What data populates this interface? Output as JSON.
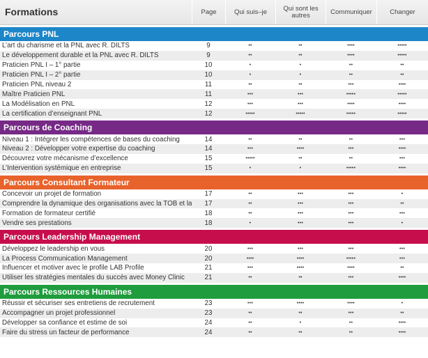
{
  "header": {
    "title": "Formations",
    "columns": [
      "Page",
      "Qui suis–je",
      "Qui sont les autres",
      "Communiquer",
      "Changer"
    ]
  },
  "sections": [
    {
      "title": "Parcours PNL",
      "color": "#1d86c8",
      "rows": [
        {
          "name": "L’art du charisme et la PNL avec R. DILTS",
          "page": "9",
          "dots": [
            "••",
            "••",
            "••••",
            "•••••"
          ]
        },
        {
          "name": "Le développement durable et la PNL avec R. DILTS",
          "page": "9",
          "dots": [
            "••",
            "••",
            "••••",
            "•••••"
          ]
        },
        {
          "name": "Praticien PNL I  – 1° partie",
          "page": "10",
          "dots": [
            "•",
            "•",
            "••",
            "••"
          ]
        },
        {
          "name": "Praticien PNL I – 2° partie",
          "page": "10",
          "dots": [
            "•",
            "•",
            "••",
            "••"
          ]
        },
        {
          "name": "Praticien PNL niveau 2",
          "page": "11",
          "dots": [
            "••",
            "••",
            "•••",
            "••••"
          ]
        },
        {
          "name": "Maître Praticien PNL",
          "page": "11",
          "dots": [
            "•••",
            "•••",
            "•••••",
            "•••••"
          ]
        },
        {
          "name": "La Modélisation en PNL",
          "page": "12",
          "dots": [
            "•••",
            "•••",
            "••••",
            "••••"
          ]
        },
        {
          "name": "La certification d’enseignant PNL",
          "page": "12",
          "dots": [
            "•••••",
            "•••••",
            "•••••",
            "•••••"
          ]
        }
      ]
    },
    {
      "title": "Parcours de Coaching",
      "color": "#762a86",
      "rows": [
        {
          "name": "Niveau 1 : Intégrer les compétences de bases du coaching",
          "page": "14",
          "dots": [
            "••",
            "••",
            "••",
            "•••"
          ]
        },
        {
          "name": "Niveau 2 : Développer votre  expertise du coaching",
          "page": "14",
          "dots": [
            "•••",
            "••••",
            "•••",
            "••••"
          ]
        },
        {
          "name": "Découvrez votre mécanisme d’excellence",
          "page": "15",
          "dots": [
            "•••••",
            "••",
            "••",
            "•••"
          ]
        },
        {
          "name": "L’Intervention systémique en entreprise",
          "page": "15",
          "dots": [
            "•",
            "•",
            "•••••",
            "••••"
          ]
        }
      ]
    },
    {
      "title": "Parcours Consultant Formateur",
      "color": "#e8622b",
      "rows": [
        {
          "name": "Concevoir un projet de formation",
          "page": "17",
          "dots": [
            "••",
            "•••",
            "•••",
            "•"
          ]
        },
        {
          "name": "Comprendre la dynamique des organisations avec la TOB et la PNL",
          "page": "17",
          "dots": [
            "••",
            "•••",
            "•••",
            "••"
          ]
        },
        {
          "name": "Formation de formateur certifié",
          "page": "18",
          "dots": [
            "••",
            "•••",
            "•••",
            "•••"
          ]
        },
        {
          "name": "Vendre ses prestations",
          "page": "18",
          "dots": [
            "•",
            "•••",
            "•••",
            "•"
          ]
        }
      ]
    },
    {
      "title": "Parcours Leadership Management",
      "color": "#c70e4d",
      "rows": [
        {
          "name": "Développez le leadership en vous",
          "page": "20",
          "dots": [
            "•••",
            "•••",
            "•••",
            "•••"
          ]
        },
        {
          "name": "La Process Communication Management",
          "page": "20",
          "dots": [
            "••••",
            "••••",
            "•••••",
            "•••"
          ]
        },
        {
          "name": "Influencer et motiver avec le profile LAB Profile",
          "page": "21",
          "dots": [
            "•••",
            "••••",
            "••••",
            "••"
          ]
        },
        {
          "name": "Utiliser les stratégies mentales du succès  avec Money Clinic",
          "page": "21",
          "dots": [
            "••",
            "••",
            "•••",
            "••••"
          ]
        }
      ]
    },
    {
      "title": "Parcours Ressources Humaines",
      "color": "#1f9c3d",
      "rows": [
        {
          "name": "Réussir et sécuriser ses entretiens de recrutement",
          "page": "23",
          "dots": [
            "•••",
            "••••",
            "••••",
            "•"
          ]
        },
        {
          "name": "Accompagner un projet professionnel",
          "page": "23",
          "dots": [
            "••",
            "••",
            "•••",
            "••"
          ]
        },
        {
          "name": "Développer sa confiance et estime de soi",
          "page": "24",
          "dots": [
            "••",
            "•",
            "••",
            "••••"
          ]
        },
        {
          "name": "Faire du stress un facteur de performance",
          "page": "24",
          "dots": [
            "••",
            "••",
            "••",
            "••••"
          ]
        }
      ]
    }
  ]
}
